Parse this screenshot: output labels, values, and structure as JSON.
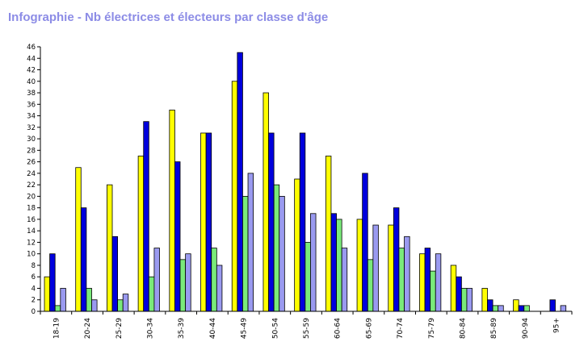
{
  "chart_data": {
    "type": "bar",
    "title": "Infographie - Nb électrices et électeurs par classe d'âge",
    "xlabel": "",
    "ylabel": "",
    "ylim": [
      0,
      46
    ],
    "yticks": [
      0,
      2,
      4,
      6,
      8,
      10,
      12,
      14,
      16,
      18,
      20,
      22,
      24,
      26,
      28,
      30,
      32,
      34,
      36,
      38,
      40,
      42,
      44,
      46
    ],
    "grid": false,
    "legend": "none",
    "categories": [
      "18-19",
      "20-24",
      "25-29",
      "30-34",
      "35-39",
      "40-44",
      "45-49",
      "50-54",
      "55-59",
      "60-64",
      "65-69",
      "70-74",
      "75-79",
      "80-84",
      "85-89",
      "90-94",
      "95+"
    ],
    "series": [
      {
        "color": "#ffff00",
        "values": [
          6,
          25,
          22,
          27,
          35,
          31,
          40,
          38,
          23,
          27,
          16,
          15,
          10,
          8,
          4,
          2,
          0
        ]
      },
      {
        "color": "#0000dd",
        "values": [
          10,
          18,
          13,
          33,
          26,
          31,
          45,
          31,
          31,
          17,
          24,
          18,
          11,
          6,
          2,
          1,
          2
        ]
      },
      {
        "color": "#7aea7a",
        "values": [
          1,
          4,
          2,
          6,
          9,
          11,
          20,
          22,
          12,
          16,
          9,
          11,
          7,
          4,
          1,
          1,
          0
        ]
      },
      {
        "color": "#9a9af0",
        "values": [
          4,
          2,
          3,
          11,
          10,
          8,
          24,
          20,
          17,
          11,
          15,
          13,
          10,
          4,
          1,
          0,
          1
        ]
      }
    ]
  }
}
